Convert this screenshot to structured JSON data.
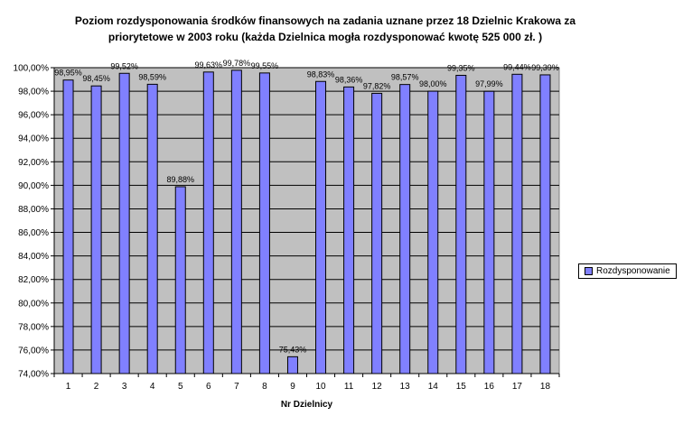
{
  "chart_data": {
    "type": "bar",
    "title_lines": [
      "Poziom rozdysponowania środków finansowych na zadania uznane przez 18 Dzielnic Krakowa za",
      "priorytetowe w 2003 roku (każda Dzielnica mogła rozdysponować kwotę 525 000 zł. )"
    ],
    "xlabel": "Nr Dzielnicy",
    "ylabel": "",
    "categories": [
      "1",
      "2",
      "3",
      "4",
      "5",
      "6",
      "7",
      "8",
      "9",
      "10",
      "11",
      "12",
      "13",
      "14",
      "15",
      "16",
      "17",
      "18"
    ],
    "series": [
      {
        "name": "Rozdysponowanie",
        "values": [
          98.95,
          98.45,
          99.52,
          98.59,
          89.88,
          99.63,
          99.78,
          99.55,
          75.43,
          98.83,
          98.36,
          97.82,
          98.57,
          98.0,
          99.35,
          97.99,
          99.44,
          99.39
        ],
        "labels": [
          "98,95%",
          "98,45%",
          "99,52%",
          "98,59%",
          "89,88%",
          "99,63%",
          "99,78%",
          "99,55%",
          "75,43%",
          "98,83%",
          "98,36%",
          "97,82%",
          "98,57%",
          "98,00%",
          "99,35%",
          "97,99%",
          "99,44%",
          "99,39%"
        ],
        "color": "#8080ff"
      }
    ],
    "ylim": [
      74,
      100
    ],
    "yticks": [
      74,
      76,
      78,
      80,
      82,
      84,
      86,
      88,
      90,
      92,
      94,
      96,
      98,
      100
    ],
    "ytick_labels": [
      "74,00%",
      "76,00%",
      "78,00%",
      "80,00%",
      "82,00%",
      "84,00%",
      "86,00%",
      "88,00%",
      "90,00%",
      "92,00%",
      "94,00%",
      "96,00%",
      "98,00%",
      "100,00%"
    ],
    "grid": true,
    "plot_background": "#c0c0c0",
    "legend": {
      "position": "right",
      "label": "Rozdysponowanie"
    }
  }
}
